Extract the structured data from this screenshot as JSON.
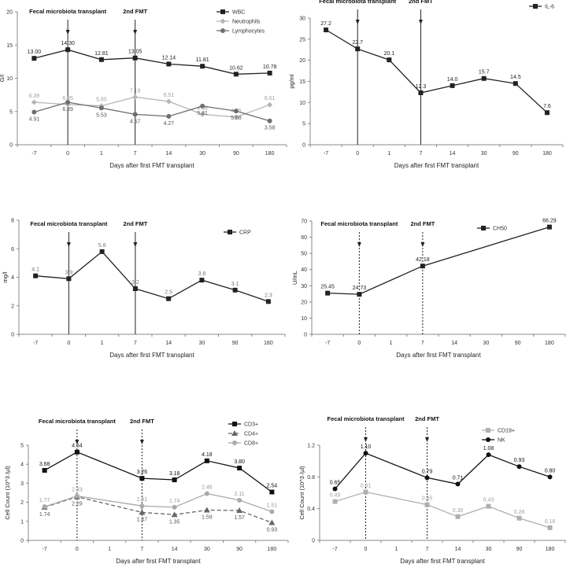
{
  "chart_data": [
    {
      "type": "line",
      "id": "wbc",
      "title": "",
      "xlabel": "Days after first FMT transplant",
      "ylabel": "G/l",
      "categories": [
        "-7",
        "0",
        "1",
        "7",
        "14",
        "30",
        "90",
        "180"
      ],
      "ylim": [
        0,
        20
      ],
      "yticks": [
        0,
        5,
        10,
        15,
        20
      ],
      "annotations": [
        {
          "label": "Fecal microbiota transplant",
          "at": 1,
          "style": "solid"
        },
        {
          "label": "2nd FMT",
          "at": 3,
          "style": "solid"
        }
      ],
      "legend_position": "top-right",
      "series": [
        {
          "name": "WBC",
          "color": "#222222",
          "marker": "square",
          "dash": "",
          "label_color": "#222222",
          "label_pos": "above",
          "values": [
            13.0,
            14.3,
            12.81,
            13.05,
            12.14,
            11.81,
            10.62,
            10.78
          ],
          "labels": [
            "13.00",
            "14.30",
            "12.81",
            "13.05",
            "12.14",
            "11.81",
            "10.62",
            "10.78"
          ]
        },
        {
          "name": "Neutrophils",
          "color": "#b5b5b5",
          "marker": "diamond",
          "dash": "",
          "label_color": "#a0a0a0",
          "label_pos": "above",
          "values": [
            6.39,
            6.05,
            5.85,
            7.18,
            6.51,
            4.58,
            4.15,
            6.01
          ],
          "labels": [
            "6.39",
            "6.05",
            "5.85",
            "7.18",
            "6.51",
            "4.58",
            "4.15",
            "6.01"
          ]
        },
        {
          "name": "Lymphocytes",
          "color": "#6e6e6e",
          "marker": "circle",
          "dash": "",
          "label_color": "#555555",
          "label_pos": "below",
          "values": [
            4.91,
            6.39,
            5.53,
            4.57,
            4.27,
            5.81,
            5.08,
            3.58
          ],
          "labels": [
            "4.91",
            "6.39",
            "5.53",
            "4.57",
            "4.27",
            "5.81",
            "5.08",
            "3.58"
          ]
        }
      ]
    },
    {
      "type": "line",
      "id": "il6",
      "title": "",
      "xlabel": "Days after first FMT transplant",
      "ylabel": "pg/ml",
      "categories": [
        "-7",
        "0",
        "1",
        "7",
        "14",
        "30",
        "90",
        "180"
      ],
      "ylim": [
        0,
        30
      ],
      "yticks": [
        0,
        5,
        10,
        15,
        20,
        25,
        30
      ],
      "annotations": [
        {
          "label": "Fecal microbiota transplant",
          "at": 1,
          "style": "solid"
        },
        {
          "label": "2nd FMT",
          "at": 3,
          "style": "solid"
        }
      ],
      "legend_position": "top-right",
      "series": [
        {
          "name": "IL-6",
          "color": "#222222",
          "marker": "square",
          "dash": "",
          "label_color": "#222222",
          "label_pos": "above",
          "values": [
            27.2,
            22.7,
            20.1,
            12.3,
            14.0,
            15.7,
            14.5,
            7.6
          ],
          "labels": [
            "27.2",
            "22.7",
            "20.1",
            "12.3",
            "14.0",
            "15.7",
            "14.5",
            "7.6"
          ]
        }
      ]
    },
    {
      "type": "line",
      "id": "crp",
      "title": "",
      "xlabel": "Days after first FMT transplant",
      "ylabel": "mg/l",
      "categories": [
        "-7",
        "0",
        "1",
        "7",
        "14",
        "30",
        "90",
        "180"
      ],
      "ylim": [
        0,
        8
      ],
      "yticks": [
        0,
        2,
        4,
        6,
        8
      ],
      "annotations": [
        {
          "label": "Fecal microbiota transplant",
          "at": 1,
          "style": "solid"
        },
        {
          "label": "2nd FMT",
          "at": 3,
          "style": "solid"
        }
      ],
      "legend_position": "top-right",
      "series": [
        {
          "name": "CRP",
          "color": "#222222",
          "marker": "square",
          "dash": "",
          "label_color": "#777777",
          "label_pos": "above",
          "values": [
            4.1,
            3.9,
            5.8,
            3.2,
            2.5,
            3.8,
            3.1,
            2.3
          ],
          "labels": [
            "4.1",
            "3.9",
            "5.8",
            "3.2",
            "2.5",
            "3.8",
            "3.1",
            "2.3"
          ]
        }
      ]
    },
    {
      "type": "line",
      "id": "ch50",
      "title": "",
      "xlabel": "Days after first FMT transplant",
      "ylabel": "U/mL",
      "categories": [
        "-7",
        "0",
        "1",
        "7",
        "14",
        "30",
        "90",
        "180"
      ],
      "ylim": [
        0,
        70
      ],
      "yticks": [
        0,
        10,
        20,
        30,
        40,
        50,
        60,
        70
      ],
      "annotations": [
        {
          "label": "Fecal microbiota transplant",
          "at": 1,
          "style": "dotted"
        },
        {
          "label": "2nd FMT",
          "at": 3,
          "style": "dotted"
        }
      ],
      "legend_position": "top-right",
      "series": [
        {
          "name": "CH50",
          "color": "#222222",
          "marker": "square",
          "dash": "",
          "label_color": "#222222",
          "label_pos": "above",
          "values": [
            25.45,
            24.73,
            null,
            42.18,
            null,
            null,
            null,
            66.29
          ],
          "labels": [
            "25.45",
            "24.73",
            "",
            "42.18",
            "",
            "",
            "",
            "66.29"
          ]
        }
      ]
    },
    {
      "type": "line",
      "id": "tcells",
      "title": "",
      "xlabel": "Days after first FMT transplant",
      "ylabel": "Cell Count (10^3 /µl)",
      "categories": [
        "-7",
        "0",
        "1",
        "7",
        "14",
        "30",
        "90",
        "180"
      ],
      "ylim": [
        0,
        5
      ],
      "yticks": [
        0,
        1,
        2,
        3,
        4,
        5
      ],
      "annotations": [
        {
          "label": "Fecal microbiota transplant",
          "at": 1,
          "style": "dotted"
        },
        {
          "label": "2nd FMT",
          "at": 3,
          "style": "dotted"
        }
      ],
      "legend_position": "top-right",
      "series": [
        {
          "name": "CD3+",
          "color": "#111111",
          "marker": "square",
          "dash": "",
          "label_color": "#111111",
          "label_pos": "above",
          "values": [
            3.68,
            4.64,
            null,
            3.26,
            3.18,
            4.18,
            3.8,
            2.54
          ],
          "labels": [
            "3.68",
            "4.64",
            "",
            "3.26",
            "3.18",
            "4.18",
            "3.80",
            "2.54"
          ]
        },
        {
          "name": "CD4+",
          "color": "#666666",
          "marker": "triangle",
          "dash": "5,3",
          "label_color": "#555555",
          "label_pos": "below",
          "values": [
            1.74,
            2.29,
            null,
            1.47,
            1.35,
            1.59,
            1.57,
            0.93
          ],
          "labels": [
            "1.74",
            "2.29",
            "",
            "1.47",
            "1.35",
            "1.59",
            "1.57",
            "0.93"
          ]
        },
        {
          "name": "CD8+",
          "color": "#aaaaaa",
          "marker": "circle",
          "dash": "",
          "label_color": "#999999",
          "label_pos": "above",
          "values": [
            1.77,
            2.33,
            null,
            1.81,
            1.74,
            2.46,
            2.11,
            1.51
          ],
          "labels": [
            "1.77",
            "2.33",
            "",
            "1.81",
            "1.74",
            "2.46",
            "2.11",
            "1.51"
          ]
        }
      ]
    },
    {
      "type": "line",
      "id": "bnk",
      "title": "",
      "xlabel": "Days after first FMT transplant",
      "ylabel": "Cell Count (10^3 /µl)",
      "categories": [
        "-7",
        "0",
        "1",
        "7",
        "14",
        "30",
        "90",
        "180"
      ],
      "ylim": [
        0,
        1.2
      ],
      "yticks": [
        0,
        0.4,
        0.8,
        1.2
      ],
      "annotations": [
        {
          "label": "Fecal microbiota transplant",
          "at": 1,
          "style": "dotted"
        },
        {
          "label": "2nd FMT",
          "at": 3,
          "style": "dotted"
        }
      ],
      "legend_position": "top-left",
      "series": [
        {
          "name": "CD19+",
          "color": "#b0b0b0",
          "marker": "square",
          "dash": "",
          "label_color": "#a0a0a0",
          "label_pos": "above",
          "values": [
            0.49,
            0.61,
            null,
            0.45,
            0.3,
            0.43,
            0.28,
            0.16
          ],
          "labels": [
            "0.49",
            "0.61",
            "",
            "0.45",
            "0.30",
            "0.43",
            "0.28",
            "0.16"
          ]
        },
        {
          "name": "NK",
          "color": "#111111",
          "marker": "circle",
          "dash": "",
          "label_color": "#111111",
          "label_pos": "above",
          "values": [
            0.65,
            1.1,
            null,
            0.79,
            0.71,
            1.08,
            0.93,
            0.8
          ],
          "labels": [
            "0.65",
            "1.10",
            "",
            "0.79",
            "0.71",
            "1.08",
            "0.93",
            "0.80"
          ]
        }
      ]
    }
  ]
}
